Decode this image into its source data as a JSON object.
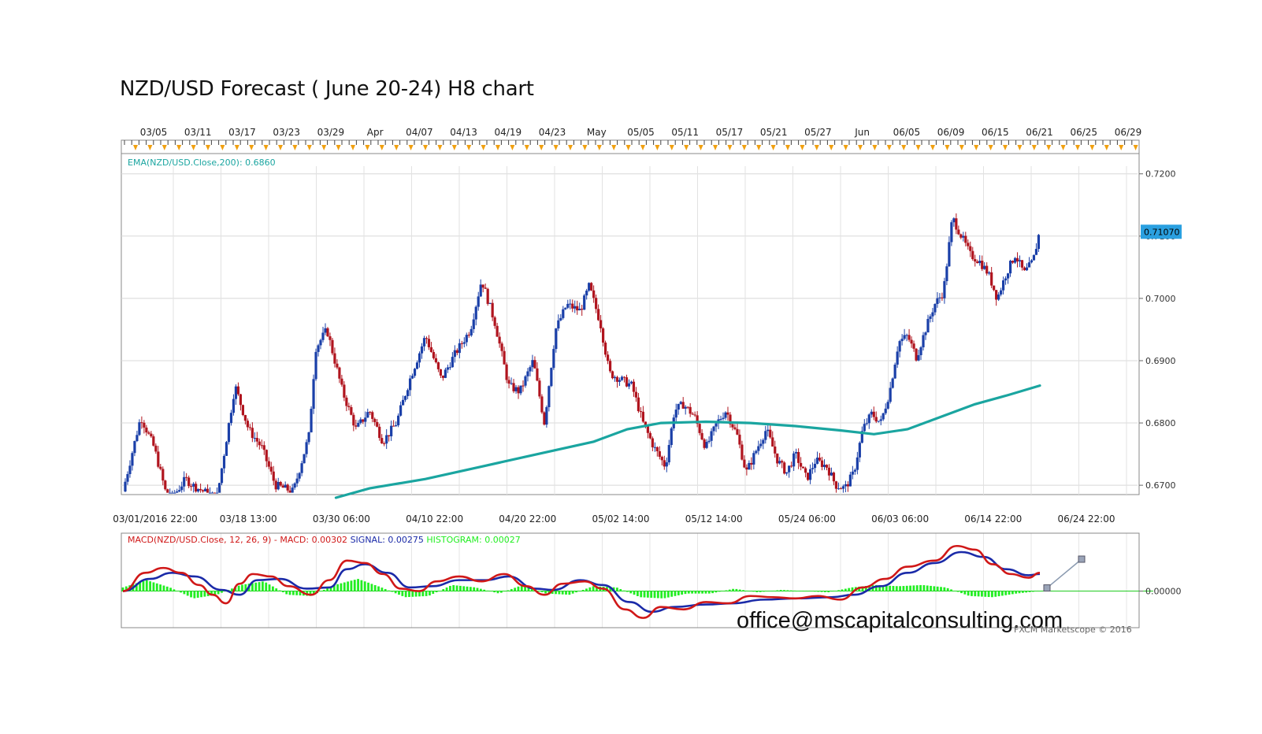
{
  "title": "NZD/USD Forecast ( June 20-24) H8 chart",
  "watermark": "office@mscapitalconsulting.com",
  "copyright": "FXCM Marketscope © 2016",
  "colors": {
    "bull": "#1a3fa8",
    "bear": "#b0141e",
    "ema": "#1aa5a0",
    "macd": "#d01818",
    "signal": "#1a2aa8",
    "histogram": "#22ee22",
    "marker": "#f0a010",
    "price_box": "#2aa0e0"
  },
  "chart_data": [
    {
      "type": "candlestick",
      "top_date_labels": [
        "03/05",
        "03/11",
        "03/17",
        "03/23",
        "03/29",
        "Apr",
        "04/07",
        "04/13",
        "04/19",
        "04/23",
        "May",
        "05/05",
        "05/11",
        "05/17",
        "05/21",
        "05/27",
        "Jun",
        "06/05",
        "06/09",
        "06/15",
        "06/21",
        "06/25",
        "06/29"
      ],
      "bottom_date_labels": [
        "03/01/2016 22:00",
        "03/18 13:00",
        "03/30 06:00",
        "04/10 22:00",
        "04/20 22:00",
        "05/02 14:00",
        "05/12 14:00",
        "05/24 06:00",
        "06/03 06:00",
        "06/14 22:00",
        "06/24 22:00"
      ],
      "y_ticks": [
        "0.7200",
        "0.7100",
        "0.7000",
        "0.6900",
        "0.6800",
        "0.6700"
      ],
      "ylim": [
        0.6685,
        0.723
      ],
      "current_price": "0.71070",
      "ema_label": "EMA(NZD/USD.Close,200): 0.6860",
      "price_path": [
        [
          0,
          0.669
        ],
        [
          8,
          0.681
        ],
        [
          14,
          0.676
        ],
        [
          19,
          0.669
        ],
        [
          22,
          0.668
        ],
        [
          28,
          0.671
        ],
        [
          31,
          0.67
        ],
        [
          36,
          0.669
        ],
        [
          42,
          0.668
        ],
        [
          50,
          0.686
        ],
        [
          56,
          0.679
        ],
        [
          62,
          0.676
        ],
        [
          68,
          0.67
        ],
        [
          76,
          0.669
        ],
        [
          83,
          0.678
        ],
        [
          86,
          0.692
        ],
        [
          91,
          0.695
        ],
        [
          98,
          0.685
        ],
        [
          104,
          0.679
        ],
        [
          110,
          0.682
        ],
        [
          116,
          0.677
        ],
        [
          122,
          0.68
        ],
        [
          128,
          0.687
        ],
        [
          135,
          0.694
        ],
        [
          142,
          0.687
        ],
        [
          148,
          0.691
        ],
        [
          155,
          0.695
        ],
        [
          160,
          0.703
        ],
        [
          166,
          0.696
        ],
        [
          172,
          0.686
        ],
        [
          177,
          0.685
        ],
        [
          183,
          0.69
        ],
        [
          188,
          0.68
        ],
        [
          193,
          0.695
        ],
        [
          198,
          0.699
        ],
        [
          204,
          0.698
        ],
        [
          208,
          0.702
        ],
        [
          213,
          0.696
        ],
        [
          217,
          0.688
        ],
        [
          222,
          0.687
        ],
        [
          227,
          0.686
        ],
        [
          232,
          0.68
        ],
        [
          237,
          0.676
        ],
        [
          242,
          0.673
        ],
        [
          246,
          0.682
        ],
        [
          250,
          0.683
        ],
        [
          255,
          0.681
        ],
        [
          260,
          0.676
        ],
        [
          265,
          0.68
        ],
        [
          269,
          0.682
        ],
        [
          274,
          0.678
        ],
        [
          278,
          0.672
        ],
        [
          283,
          0.676
        ],
        [
          287,
          0.679
        ],
        [
          292,
          0.674
        ],
        [
          296,
          0.672
        ],
        [
          300,
          0.675
        ],
        [
          305,
          0.671
        ],
        [
          309,
          0.674
        ],
        [
          314,
          0.673
        ],
        [
          318,
          0.67
        ],
        [
          322,
          0.6695
        ],
        [
          326,
          0.672
        ],
        [
          330,
          0.679
        ],
        [
          334,
          0.6815
        ],
        [
          338,
          0.68
        ],
        [
          342,
          0.685
        ],
        [
          346,
          0.693
        ],
        [
          350,
          0.694
        ],
        [
          354,
          0.6905
        ],
        [
          358,
          0.695
        ],
        [
          362,
          0.699
        ],
        [
          366,
          0.701
        ],
        [
          370,
          0.713
        ],
        [
          374,
          0.71
        ],
        [
          378,
          0.707
        ],
        [
          382,
          0.706
        ],
        [
          386,
          0.704
        ],
        [
          390,
          0.7
        ],
        [
          394,
          0.704
        ],
        [
          398,
          0.707
        ],
        [
          402,
          0.704
        ],
        [
          406,
          0.706
        ],
        [
          409,
          0.711
        ]
      ],
      "ema_path": [
        [
          0,
          null
        ],
        [
          95,
          0.668
        ],
        [
          110,
          0.6695
        ],
        [
          135,
          0.671
        ],
        [
          160,
          0.673
        ],
        [
          185,
          0.675
        ],
        [
          210,
          0.677
        ],
        [
          225,
          0.679
        ],
        [
          240,
          0.68
        ],
        [
          260,
          0.6802
        ],
        [
          280,
          0.68
        ],
        [
          300,
          0.6795
        ],
        [
          320,
          0.6788
        ],
        [
          335,
          0.6782
        ],
        [
          350,
          0.679
        ],
        [
          365,
          0.681
        ],
        [
          380,
          0.683
        ],
        [
          395,
          0.6845
        ],
        [
          409,
          0.686
        ]
      ],
      "x_range": [
        0,
        409
      ],
      "forecast_visible_until": 409
    },
    {
      "type": "macd",
      "label_prefix": "MACD(NZD/USD.Close, 12, 26, 9) -  MACD: 0.00302",
      "signal_label": "SIGNAL: 0.00275",
      "histogram_label": "HISTOGRAM: 0.00027",
      "y_tick": "0.00000",
      "macd_path": [
        [
          0,
          0.0
        ],
        [
          10,
          0.003
        ],
        [
          18,
          0.0038
        ],
        [
          26,
          0.003
        ],
        [
          34,
          0.001
        ],
        [
          40,
          -0.0006
        ],
        [
          46,
          -0.002
        ],
        [
          52,
          0.0012
        ],
        [
          58,
          0.0028
        ],
        [
          66,
          0.0024
        ],
        [
          74,
          0.0008
        ],
        [
          84,
          -0.0006
        ],
        [
          92,
          0.0018
        ],
        [
          100,
          0.005
        ],
        [
          108,
          0.0046
        ],
        [
          116,
          0.0028
        ],
        [
          124,
          0.0004
        ],
        [
          132,
          0.0
        ],
        [
          140,
          0.0016
        ],
        [
          150,
          0.0024
        ],
        [
          160,
          0.0016
        ],
        [
          170,
          0.0028
        ],
        [
          180,
          0.0008
        ],
        [
          188,
          -0.0006
        ],
        [
          196,
          0.0012
        ],
        [
          206,
          0.0016
        ],
        [
          214,
          0.0004
        ],
        [
          224,
          -0.003
        ],
        [
          232,
          -0.0044
        ],
        [
          240,
          -0.0026
        ],
        [
          250,
          -0.003
        ],
        [
          260,
          -0.0018
        ],
        [
          270,
          -0.002
        ],
        [
          280,
          -0.0008
        ],
        [
          290,
          -0.001
        ],
        [
          300,
          -0.0012
        ],
        [
          310,
          -0.0008
        ],
        [
          320,
          -0.0014
        ],
        [
          330,
          0.0006
        ],
        [
          340,
          0.002
        ],
        [
          350,
          0.004
        ],
        [
          362,
          0.005
        ],
        [
          372,
          0.0074
        ],
        [
          380,
          0.0068
        ],
        [
          388,
          0.0044
        ],
        [
          396,
          0.0028
        ],
        [
          404,
          0.0022
        ],
        [
          409,
          0.003
        ]
      ],
      "signal_path": [
        [
          0,
          0.0
        ],
        [
          12,
          0.002
        ],
        [
          22,
          0.003
        ],
        [
          32,
          0.0024
        ],
        [
          44,
          0.0002
        ],
        [
          52,
          -0.0006
        ],
        [
          60,
          0.0018
        ],
        [
          70,
          0.002
        ],
        [
          82,
          0.0004
        ],
        [
          92,
          0.0006
        ],
        [
          100,
          0.0036
        ],
        [
          108,
          0.0044
        ],
        [
          118,
          0.003
        ],
        [
          128,
          0.0006
        ],
        [
          138,
          0.0008
        ],
        [
          150,
          0.0018
        ],
        [
          162,
          0.0018
        ],
        [
          172,
          0.0024
        ],
        [
          184,
          0.0004
        ],
        [
          192,
          0.0002
        ],
        [
          204,
          0.0018
        ],
        [
          214,
          0.001
        ],
        [
          226,
          -0.0018
        ],
        [
          236,
          -0.0034
        ],
        [
          246,
          -0.0026
        ],
        [
          260,
          -0.0022
        ],
        [
          272,
          -0.002
        ],
        [
          286,
          -0.0014
        ],
        [
          300,
          -0.0012
        ],
        [
          316,
          -0.001
        ],
        [
          326,
          -0.0006
        ],
        [
          338,
          0.0008
        ],
        [
          350,
          0.003
        ],
        [
          362,
          0.0046
        ],
        [
          374,
          0.0064
        ],
        [
          384,
          0.0056
        ],
        [
          394,
          0.0036
        ],
        [
          404,
          0.0026
        ],
        [
          409,
          0.0028
        ]
      ],
      "histogram": [
        0.0006,
        0.0018,
        0.0006,
        -0.0012,
        -0.0006,
        0.001,
        0.0016,
        -0.0006,
        -0.0008,
        0.001,
        0.002,
        0.0006,
        -0.001,
        -0.0008,
        0.001,
        0.0006,
        -0.0004,
        0.001,
        -0.0004,
        -0.0006,
        0.0008,
        0.0006,
        -0.001,
        -0.0012,
        -0.0004,
        -0.0004,
        0.0004,
        -0.0002,
        0.0002,
        0.0,
        -0.0002,
        0.0006,
        0.001,
        0.0008,
        0.001,
        0.0006,
        -0.0008,
        -0.001,
        -0.0004,
        0.0
      ],
      "ylim": [
        -0.006,
        0.0095
      ]
    }
  ]
}
